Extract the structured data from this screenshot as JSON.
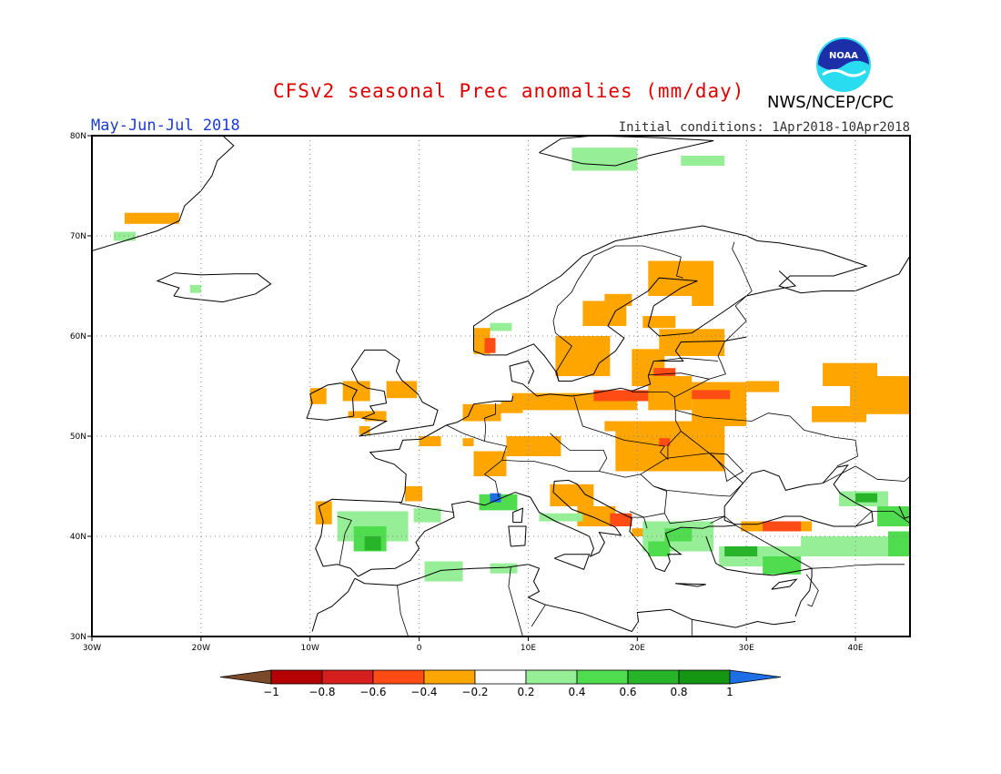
{
  "header": {
    "title": "CFSv2 seasonal Prec anomalies (mm/day)",
    "period": "May-Jun-Jul 2018",
    "initial_conditions": "Initial conditions: 1Apr2018-10Apr2018",
    "agency": "NWS/NCEP/CPC",
    "logo_text": "NOAA"
  },
  "map": {
    "region": "Europe",
    "lon_range": [
      -30,
      45
    ],
    "lat_range": [
      30,
      80
    ],
    "lat_labels": [
      "80N",
      "70N",
      "60N",
      "50N",
      "40N",
      "30N"
    ],
    "lon_labels": [
      "30W",
      "20W",
      "10W",
      "0",
      "10E",
      "20E",
      "30E",
      "40E"
    ],
    "grid_style": "dotted"
  },
  "colorbar": {
    "labels": [
      "-1",
      "-0.8",
      "-0.6",
      "-0.4",
      "-0.2",
      "0.2",
      "0.4",
      "0.6",
      "0.8",
      "1"
    ],
    "colors": [
      "#7a4a2a",
      "#b40000",
      "#d61e1e",
      "#ff4b14",
      "#ffa500",
      "#ffffff",
      "#96ee96",
      "#4fdc4f",
      "#28b428",
      "#149614",
      "#1e6ee6"
    ]
  },
  "colors": {
    "orange": "#ffa500",
    "red": "#ff4b14",
    "darkred": "#d61e1e",
    "lightgreen": "#96ee96",
    "green": "#4fdc4f",
    "darkgreen": "#28b428",
    "blue": "#1e6ee6"
  }
}
